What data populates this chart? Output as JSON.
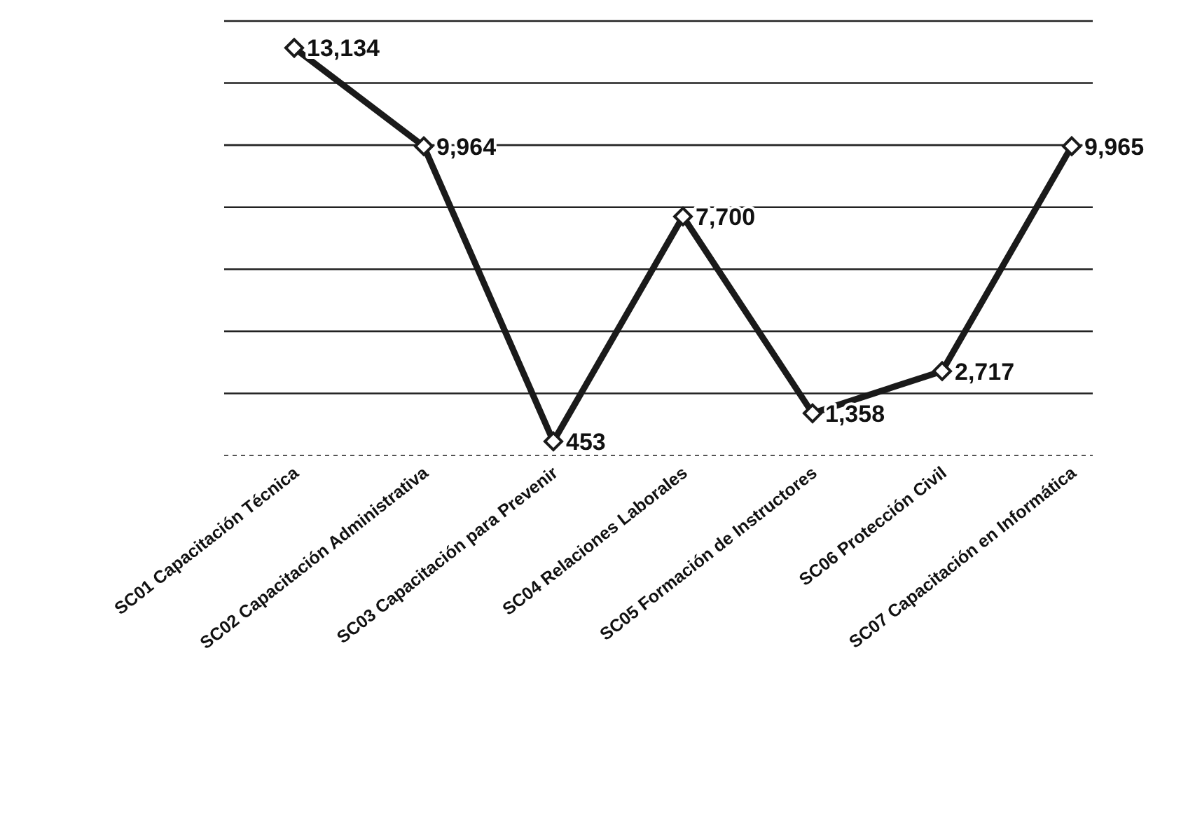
{
  "chart_data": {
    "type": "line",
    "categories": [
      "SC01 Capacitación Técnica",
      "SC02 Capacitación Administrativa",
      "SC03 Capacitación para Prevenir",
      "SC04 Relaciones Laborales",
      "SC05 Formación de Instructores",
      "SC06 Protección Civil",
      "SC07 Capacitación en Informática"
    ],
    "series": [
      {
        "color": "#1a1a1a",
        "values": [
          13134,
          9964,
          453,
          7700,
          1358,
          2717,
          9965
        ],
        "value_labels": [
          "13,134",
          "9,964",
          "453",
          "7,700",
          "1,358",
          "2,717",
          "9,965"
        ]
      }
    ],
    "ylim": [
      0,
      14000
    ],
    "yticks": [
      {
        "value": 0,
        "label": null
      },
      {
        "value": 2000,
        "label": null
      },
      {
        "value": 4000,
        "label": null
      },
      {
        "value": 6000,
        "label": null
      },
      {
        "value": 8000,
        "label": null
      },
      {
        "value": 10000,
        "label": null
      },
      {
        "value": 12000,
        "label": null
      },
      {
        "value": 14000,
        "label": null
      }
    ],
    "grid": "y",
    "tick_labels": "x",
    "marker": "diamond",
    "line_style": "solid"
  }
}
